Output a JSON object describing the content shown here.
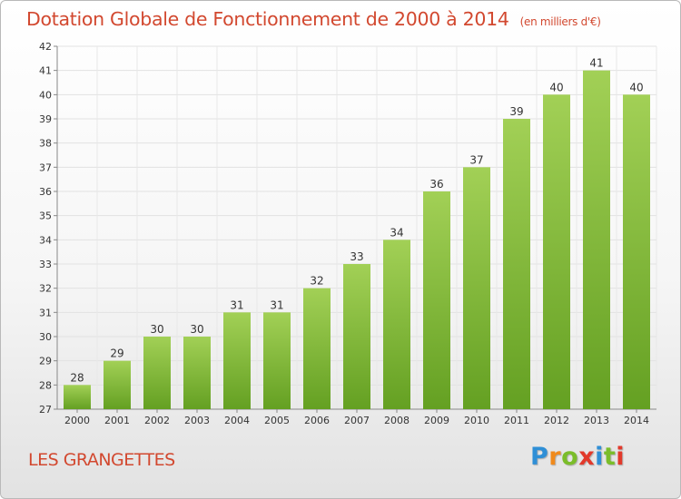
{
  "title": "Dotation Globale de Fonctionnement de 2000 à 2014",
  "unit_note": "(en milliers d'€)",
  "commune": "LES GRANGETTES",
  "logo": {
    "letters": [
      "P",
      "r",
      "o",
      "x",
      "i",
      "t",
      "i"
    ],
    "colors": [
      "#2f8fd6",
      "#f08a1c",
      "#7bbd2a",
      "#e2392b",
      "#2f8fd6",
      "#7bbd2a",
      "#e2392b"
    ]
  },
  "colors": {
    "bar_light": "#a2d056",
    "bar_dark": "#64a022",
    "title": "#d2482f"
  },
  "chart_data": {
    "type": "bar",
    "title": "Dotation Globale de Fonctionnement de 2000 à 2014",
    "subtitle": "(en milliers d'€)",
    "categories": [
      "2000",
      "2001",
      "2002",
      "2003",
      "2004",
      "2005",
      "2006",
      "2007",
      "2008",
      "2009",
      "2010",
      "2011",
      "2012",
      "2013",
      "2014"
    ],
    "values": [
      28,
      29,
      30,
      30,
      31,
      31,
      32,
      33,
      34,
      36,
      37,
      39,
      40,
      41,
      40
    ],
    "ylim": [
      27,
      42
    ],
    "yticks": [
      27,
      28,
      29,
      30,
      31,
      32,
      33,
      34,
      35,
      36,
      37,
      38,
      39,
      40,
      41,
      42
    ],
    "grid": true,
    "xlabel": "",
    "ylabel": ""
  }
}
